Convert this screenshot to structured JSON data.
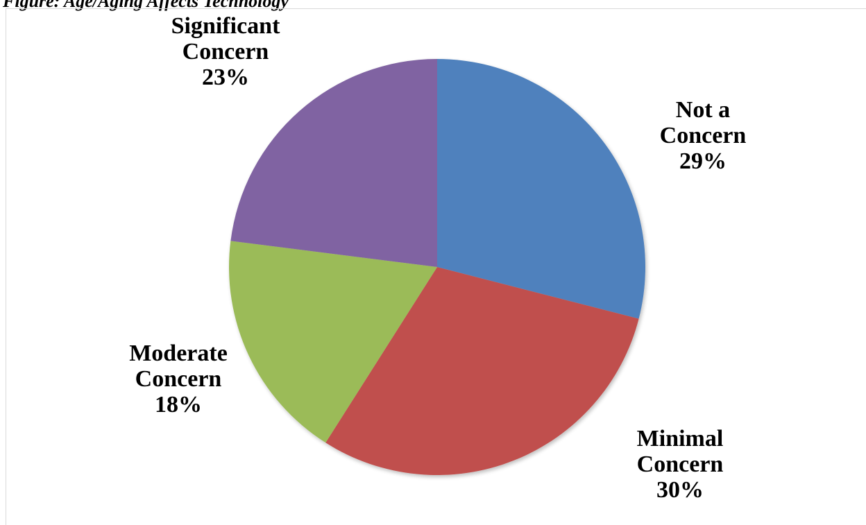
{
  "caption": "Figure: Age/Aging Affects Technology",
  "chart_data": {
    "type": "pie",
    "slices": [
      {
        "name_lines": [
          "Not a",
          "Concern"
        ],
        "percent_label": "29%",
        "value": 29,
        "color": "#4F81BD"
      },
      {
        "name_lines": [
          "Minimal",
          "Concern"
        ],
        "percent_label": "30%",
        "value": 30,
        "color": "#C0504D"
      },
      {
        "name_lines": [
          "Moderate",
          "Concern"
        ],
        "percent_label": "18%",
        "value": 18,
        "color": "#9BBB59"
      },
      {
        "name_lines": [
          "Significant",
          "Concern"
        ],
        "percent_label": "23%",
        "value": 23,
        "color": "#8064A2"
      }
    ],
    "start_angle_deg": 0,
    "direction": "clockwise",
    "legend": "none",
    "data_labels": "outside"
  }
}
